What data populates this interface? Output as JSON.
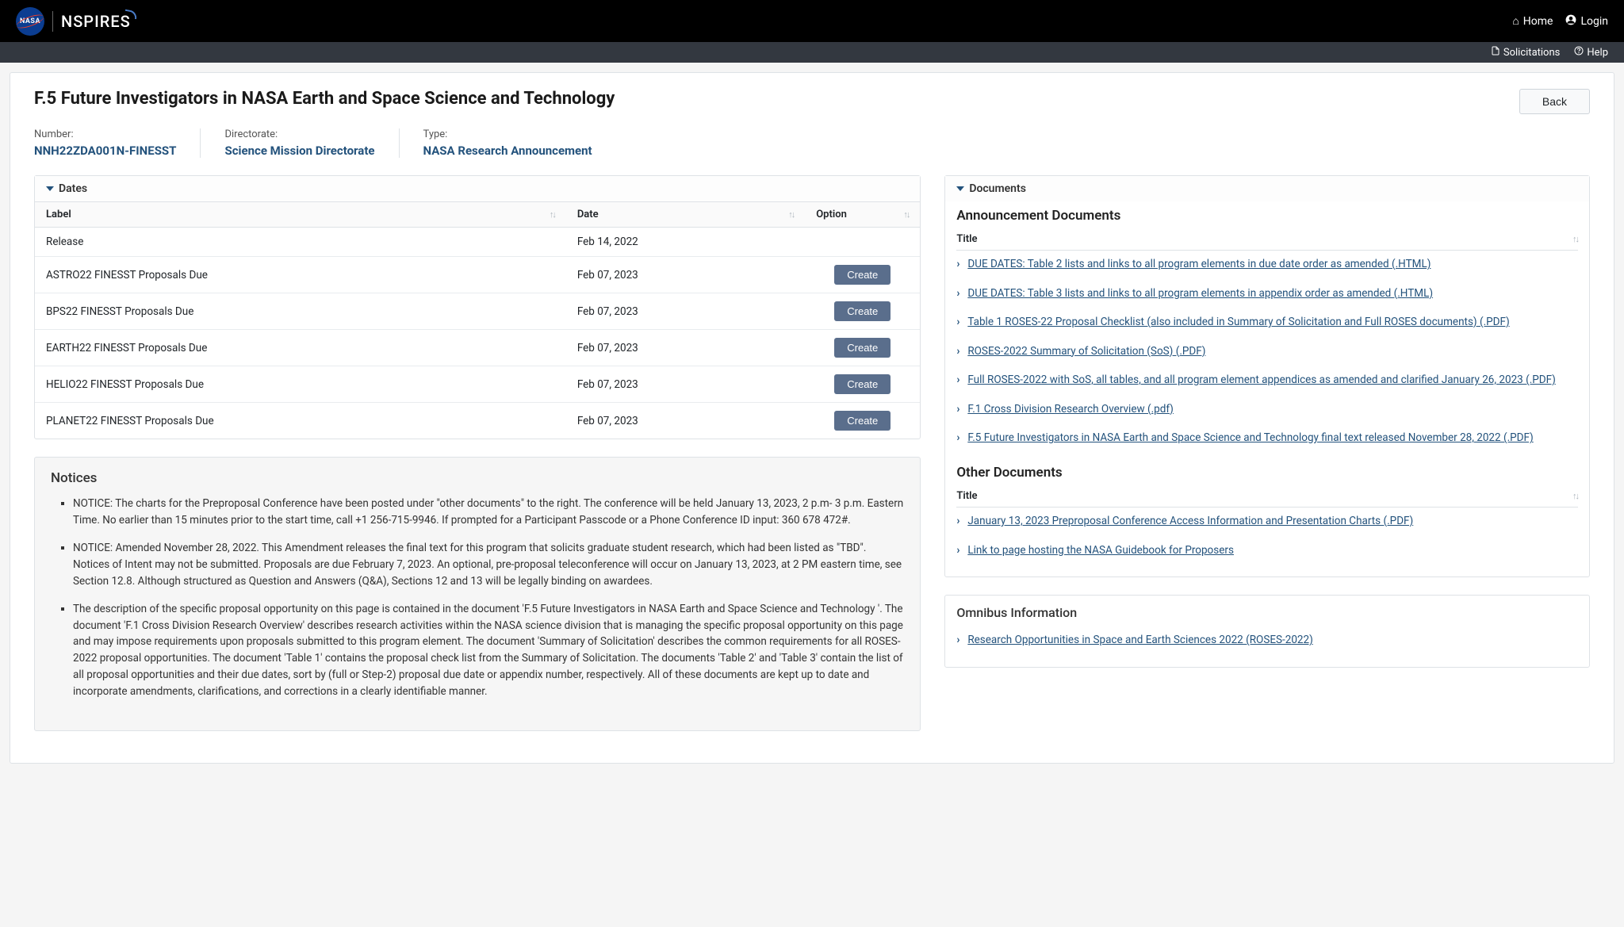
{
  "header": {
    "logo_text": "NASA",
    "brand": "NSPIRES",
    "home": "Home",
    "login": "Login",
    "solicitations": "Solicitations",
    "help": "Help"
  },
  "page": {
    "title": "F.5 Future Investigators in NASA Earth and Space Science and Technology",
    "back": "Back"
  },
  "meta": {
    "number_label": "Number:",
    "number_value": "NNH22ZDA001N-FINESST",
    "directorate_label": "Directorate:",
    "directorate_value": "Science Mission Directorate",
    "type_label": "Type:",
    "type_value": "NASA Research Announcement"
  },
  "dates": {
    "header": "Dates",
    "col_label": "Label",
    "col_date": "Date",
    "col_option": "Option",
    "create": "Create",
    "rows": [
      {
        "label": "Release",
        "date": "Feb 14, 2022",
        "has_button": false
      },
      {
        "label": "ASTRO22 FINESST Proposals Due",
        "date": "Feb 07, 2023",
        "has_button": true
      },
      {
        "label": "BPS22 FINESST Proposals Due",
        "date": "Feb 07, 2023",
        "has_button": true
      },
      {
        "label": "EARTH22 FINESST Proposals Due",
        "date": "Feb 07, 2023",
        "has_button": true
      },
      {
        "label": "HELIO22 FINESST Proposals Due",
        "date": "Feb 07, 2023",
        "has_button": true
      },
      {
        "label": "PLANET22 FINESST Proposals Due",
        "date": "Feb 07, 2023",
        "has_button": true
      }
    ]
  },
  "notices": {
    "header": "Notices",
    "items": [
      "NOTICE: The charts for the Preproposal Conference have been posted under \"other documents\" to the right. The conference will be held January 13, 2023, 2 p.m- 3 p.m. Eastern Time. No earlier than 15 minutes prior to the start time, call +1 256-715-9946. If prompted for a Participant Passcode or a Phone Conference ID input: 360 678 472#.",
      "NOTICE: Amended November 28, 2022. This Amendment releases the final text for this program that solicits graduate student research, which had been listed as \"TBD\". Notices of Intent may not be submitted. Proposals are due February 7, 2023. An optional, pre-proposal teleconference will occur on January 13, 2023, at 2 PM eastern time, see Section 12.8. Although structured as Question and Answers (Q&A), Sections 12 and 13 will be legally binding on awardees.",
      "The description of the specific proposal opportunity on this page is contained in the document 'F.5 Future Investigators in NASA Earth and Space Science and Technology '. The document 'F.1 Cross Division Research Overview' describes research activities within the NASA science division that is managing the specific proposal opportunity on this page and may impose requirements upon proposals submitted to this program element. The document 'Summary of Solicitation' describes the common requirements for all ROSES-2022 proposal opportunities. The document 'Table 1' contains the proposal check list from the Summary of Solicitation. The documents 'Table 2' and 'Table 3' contain the list of all proposal opportunities and their due dates, sort by (full or Step-2) proposal due date or appendix number, respectively. All of these documents are kept up to date and incorporate amendments, clarifications, and corrections in a clearly identifiable manner."
    ]
  },
  "documents": {
    "header": "Documents",
    "announcement_header": "Announcement Documents",
    "other_header": "Other Documents",
    "title_col": "Title",
    "announcement": [
      "DUE DATES: Table 2 lists and links to all program elements in due date order as amended (.HTML)",
      "DUE DATES: Table 3 lists and links to all program elements in appendix order as amended (.HTML)",
      "Table 1 ROSES-22 Proposal Checklist (also included in Summary of Solicitation and Full ROSES documents) (.PDF)",
      "ROSES-2022 Summary of Solicitation (SoS) (.PDF)",
      "Full ROSES-2022 with SoS, all tables, and all program element appendices as amended and clarified January 26, 2023 (.PDF)",
      "F.1 Cross Division Research Overview (.pdf)",
      "F.5 Future Investigators in NASA Earth and Space Science and Technology final text released November 28, 2022 (.PDF)"
    ],
    "other": [
      "January 13, 2023 Preproposal Conference Access Information and Presentation Charts (.PDF)",
      "Link to page hosting the NASA Guidebook for Proposers"
    ]
  },
  "omnibus": {
    "header": "Omnibus Information",
    "link": "Research Opportunities in Space and Earth Sciences 2022 (ROSES-2022)"
  },
  "colors": {
    "link": "#23527c",
    "button_bg": "#5a6e8c",
    "border": "#dee2e6"
  }
}
